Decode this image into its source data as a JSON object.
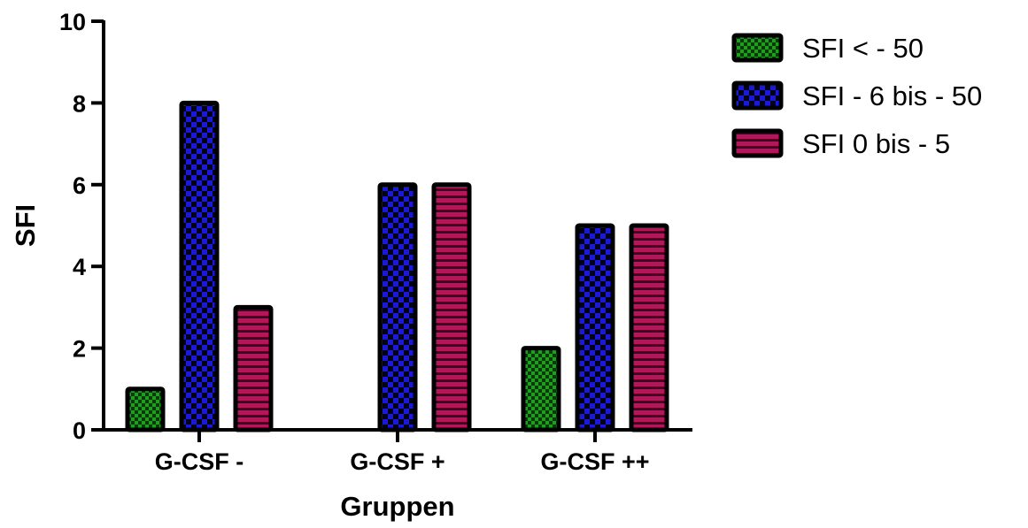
{
  "chart_data": {
    "type": "bar",
    "title": "",
    "xlabel": "Gruppen",
    "ylabel": "SFI",
    "ylim": [
      0,
      10
    ],
    "yticks": [
      0,
      2,
      4,
      6,
      8,
      10
    ],
    "grid": false,
    "legend_position": "top-right",
    "categories": [
      "G-CSF -",
      "G-CSF +",
      "G-CSF ++"
    ],
    "series": [
      {
        "name": "SFI < - 50",
        "values": [
          1,
          0,
          2
        ],
        "color": "#1f9e1f",
        "pattern": "checker-fine"
      },
      {
        "name": "SFI - 6 bis - 50",
        "values": [
          8,
          6,
          5
        ],
        "color": "#1a1ad6",
        "pattern": "checker-coarse"
      },
      {
        "name": "SFI 0 bis - 5",
        "values": [
          3,
          6,
          5
        ],
        "color": "#b0185a",
        "pattern": "horizontal-stripes"
      }
    ]
  }
}
